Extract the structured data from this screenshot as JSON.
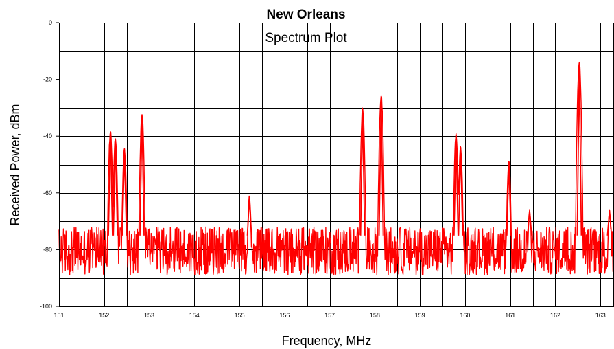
{
  "chart_data": {
    "type": "line",
    "title": "New Orleans",
    "subtitle": "Spectrum Plot",
    "xlabel": "Frequency, MHz",
    "ylabel": "Received Power, dBm",
    "xlim": [
      151,
      163.3
    ],
    "ylim": [
      -100,
      0
    ],
    "x_ticks": [
      151,
      152,
      153,
      154,
      155,
      156,
      157,
      158,
      159,
      160,
      161,
      162,
      163
    ],
    "x_tick_labels": [
      "151",
      "152",
      "153",
      "154",
      "155",
      "156",
      "157",
      "158",
      "159",
      "160",
      "161",
      "162",
      "163"
    ],
    "y_ticks": [
      0,
      -20,
      -40,
      -60,
      -80,
      -100
    ],
    "y_tick_labels": [
      "0",
      "-20",
      "-40",
      "-60",
      "-80",
      "-100"
    ],
    "grid": true,
    "legend": "none",
    "line_color": "#ff0000",
    "noise_floor": {
      "min": -89,
      "max": -72
    },
    "series": [
      {
        "peaks": [
          {
            "x": 152.14,
            "y": -38.5
          },
          {
            "x": 152.25,
            "y": -41
          },
          {
            "x": 152.45,
            "y": -44.5
          },
          {
            "x": 152.84,
            "y": -32.5
          },
          {
            "x": 155.22,
            "y": -61.5
          },
          {
            "x": 157.73,
            "y": -30.5
          },
          {
            "x": 158.14,
            "y": -26
          },
          {
            "x": 159.8,
            "y": -39.5
          },
          {
            "x": 159.9,
            "y": -44
          },
          {
            "x": 160.97,
            "y": -49
          },
          {
            "x": 161.43,
            "y": -66.5
          },
          {
            "x": 162.53,
            "y": -14
          },
          {
            "x": 163.2,
            "y": -66.5
          }
        ]
      }
    ]
  }
}
